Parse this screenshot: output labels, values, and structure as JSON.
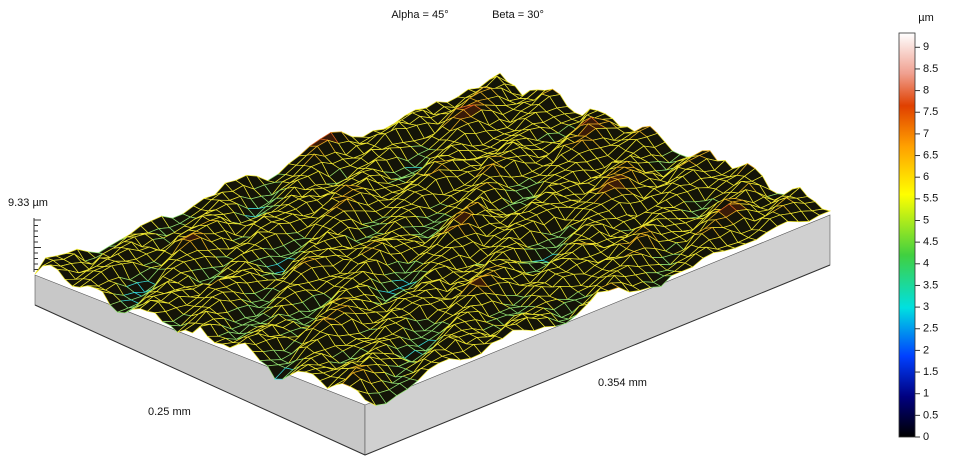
{
  "header": {
    "alpha": "Alpha = 45°",
    "beta": "Beta = 30°"
  },
  "axes": {
    "z_label": "9.33 µm",
    "x_label": "0.25 mm",
    "y_label": "0.354 mm"
  },
  "colorbar": {
    "unit": "µm",
    "range": [
      0,
      9.33
    ],
    "ticks": [
      0,
      0.5,
      1,
      1.5,
      2,
      2.5,
      3,
      3.5,
      4,
      4.5,
      5,
      5.5,
      6,
      6.5,
      7,
      7.5,
      8,
      8.5,
      9
    ]
  }
}
